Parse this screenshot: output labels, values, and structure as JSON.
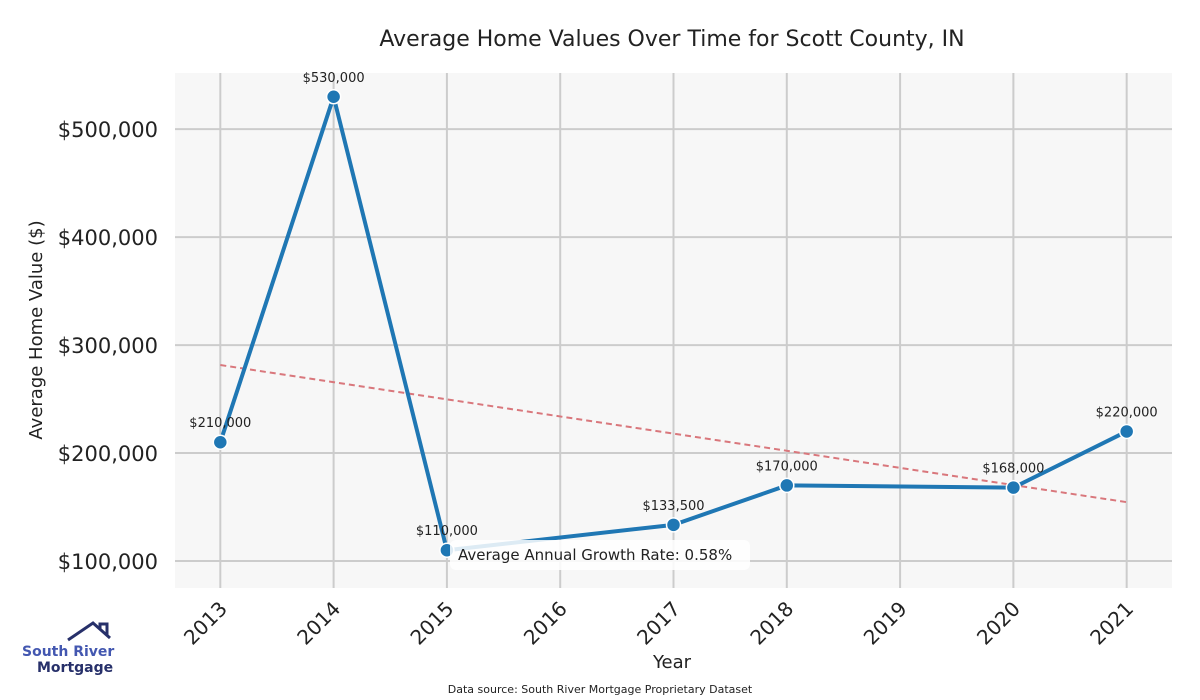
{
  "chart_data": {
    "type": "line",
    "title": "Average Home Values Over Time for Scott County, IN",
    "xlabel": "Year",
    "ylabel": "Average Home Value ($)",
    "x": [
      2013,
      2014,
      2015,
      2017,
      2018,
      2020,
      2021
    ],
    "x_ticks": [
      "2013",
      "2014",
      "2015",
      "2016",
      "2017",
      "2018",
      "2019",
      "2020",
      "2021"
    ],
    "xlim": [
      2012.6,
      2021.4
    ],
    "ylim": [
      75000,
      552000
    ],
    "y_ticks": [
      100000,
      200000,
      300000,
      400000,
      500000
    ],
    "y_tick_labels": [
      "$100,000",
      "$200,000",
      "$300,000",
      "$400,000",
      "$500,000"
    ],
    "series": [
      {
        "name": "Average Home Value",
        "values": [
          210000,
          530000,
          110000,
          133500,
          170000,
          168000,
          220000
        ],
        "color": "#1f77b4"
      }
    ],
    "data_labels": [
      "$210,000",
      "$530,000",
      "$110,000",
      "$133,500",
      "$170,000",
      "$168,000",
      "$220,000"
    ],
    "trend": {
      "name": "Trend",
      "x": [
        2013,
        2021
      ],
      "values": [
        281500,
        154500
      ],
      "color": "#d9777c"
    },
    "annotation": "Average Annual Growth Rate: 0.58%",
    "grid": true,
    "source": "Data source: South River Mortgage Proprietary Dataset"
  },
  "logo": {
    "line1": "South River",
    "line2": "Mortgage"
  }
}
